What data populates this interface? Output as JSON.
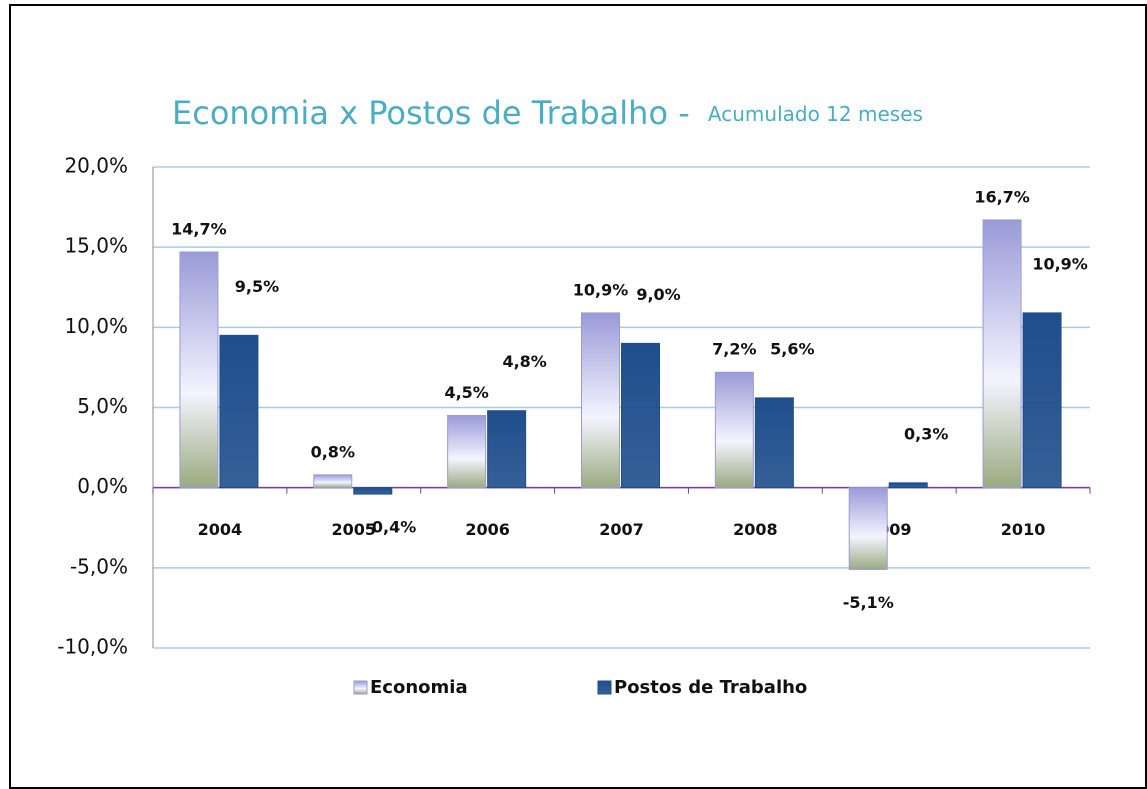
{
  "chart_data": {
    "type": "bar",
    "title": "Economia x Postos de Trabalho -",
    "subtitle": "Acumulado 12 meses",
    "categories": [
      "2004",
      "2005",
      "2006",
      "2007",
      "2008",
      "2009",
      "2010"
    ],
    "series": [
      {
        "name": "Economia",
        "color": "#9a9ad8",
        "values": [
          14.7,
          0.8,
          4.5,
          10.9,
          7.2,
          -5.1,
          16.7
        ],
        "value_labels": [
          "14,7%",
          "0,8%",
          "4,5%",
          "10,9%",
          "7,2%",
          "-5,1%",
          "16,7%"
        ]
      },
      {
        "name": "Postos de Trabalho",
        "color": "#1f4e8c",
        "values": [
          9.5,
          -0.4,
          4.8,
          9.0,
          5.6,
          0.3,
          10.9
        ],
        "value_labels": [
          "9,5%",
          "-0,4%",
          "4,8%",
          "9,0%",
          "5,6%",
          "0,3%",
          "10,9%"
        ]
      }
    ],
    "ylim": [
      -10,
      20
    ],
    "yticks": [
      {
        "value": -10,
        "label": "-10,0%"
      },
      {
        "value": -5,
        "label": "-5,0%"
      },
      {
        "value": 0,
        "label": "0,0%"
      },
      {
        "value": 5,
        "label": "5,0%"
      },
      {
        "value": 10,
        "label": "10,0%"
      },
      {
        "value": 15,
        "label": "15,0%"
      },
      {
        "value": 20,
        "label": "20,0%"
      }
    ],
    "grid": true,
    "legend": "bottom"
  }
}
